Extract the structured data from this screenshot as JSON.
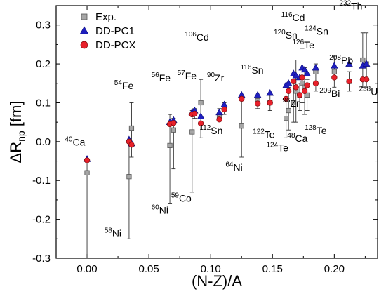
{
  "chart_data": {
    "type": "scatter",
    "xlabel": "(N-Z)/A",
    "ylabel_main": "ΔR",
    "ylabel_sub": "np",
    "ylabel_unit": " [fm]",
    "xlim": [
      -0.025,
      0.235
    ],
    "ylim": [
      -0.3,
      0.35
    ],
    "xticks": [
      0.0,
      0.05,
      0.1,
      0.15,
      0.2
    ],
    "xtick_labels": [
      "0.00",
      "0.05",
      "0.10",
      "0.15",
      "0.20"
    ],
    "yticks": [
      -0.3,
      -0.2,
      -0.1,
      0.0,
      0.1,
      0.2,
      0.3
    ],
    "ytick_labels": [
      "-0.3",
      "-0.2",
      "-0.1",
      "0.0",
      "0.1",
      "0.2",
      "0.3"
    ],
    "grid": false,
    "legend_position": "top-left",
    "series": [
      {
        "name": "Exp.",
        "marker": "square",
        "color": "#a6a6a6"
      },
      {
        "name": "DD-PC1",
        "marker": "triangle",
        "color": "#1f1fbf"
      },
      {
        "name": "DD-PCX",
        "marker": "circle",
        "color": "#e8202a"
      }
    ],
    "experiment": [
      {
        "x": 0.0,
        "y": -0.08,
        "lo": -0.31,
        "hi": -0.05
      },
      {
        "x": 0.034,
        "y": -0.09,
        "lo": -0.25,
        "hi": 0.0
      },
      {
        "x": 0.036,
        "y": 0.035,
        "lo": -0.04,
        "hi": 0.1
      },
      {
        "x": 0.067,
        "y": -0.01,
        "lo": -0.16,
        "hi": 0.07
      },
      {
        "x": 0.07,
        "y": 0.03,
        "lo": -0.07,
        "hi": 0.06
      },
      {
        "x": 0.085,
        "y": 0.025,
        "lo": -0.13,
        "hi": 0.08
      },
      {
        "x": 0.087,
        "y": 0.075,
        "lo": 0.06,
        "hi": 0.085
      },
      {
        "x": 0.092,
        "y": 0.1,
        "lo": 0.01,
        "hi": 0.16
      },
      {
        "x": 0.107,
        "y": 0.065,
        "lo": 0.055,
        "hi": 0.085
      },
      {
        "x": 0.111,
        "y": 0.085,
        "lo": 0.07,
        "hi": 0.1
      },
      {
        "x": 0.125,
        "y": 0.04,
        "lo": -0.04,
        "hi": 0.12
      },
      {
        "x": 0.138,
        "y": 0.105,
        "lo": 0.085,
        "hi": 0.125
      },
      {
        "x": 0.148,
        "y": 0.1,
        "lo": 0.08,
        "hi": 0.12
      },
      {
        "x": 0.161,
        "y": 0.06,
        "lo": 0.01,
        "hi": 0.11
      },
      {
        "x": 0.163,
        "y": 0.08,
        "lo": 0.03,
        "hi": 0.14
      },
      {
        "x": 0.167,
        "y": 0.1,
        "lo": 0.05,
        "hi": 0.15
      },
      {
        "x": 0.169,
        "y": 0.13,
        "lo": 0.05,
        "hi": 0.21
      },
      {
        "x": 0.172,
        "y": 0.12,
        "lo": 0.08,
        "hi": 0.15
      },
      {
        "x": 0.174,
        "y": 0.15,
        "lo": 0.1,
        "hi": 0.24
      },
      {
        "x": 0.176,
        "y": 0.14,
        "lo": 0.07,
        "hi": 0.19
      },
      {
        "x": 0.178,
        "y": 0.12,
        "lo": 0.08,
        "hi": 0.16
      },
      {
        "x": 0.185,
        "y": 0.18,
        "lo": 0.13,
        "hi": 0.2
      },
      {
        "x": 0.2,
        "y": 0.18,
        "lo": 0.14,
        "hi": 0.22
      },
      {
        "x": 0.212,
        "y": 0.155,
        "lo": 0.13,
        "hi": 0.18
      },
      {
        "x": 0.223,
        "y": 0.21,
        "lo": 0.14,
        "hi": 0.28
      },
      {
        "x": 0.226,
        "y": 0.2,
        "lo": 0.14,
        "hi": 0.28
      }
    ],
    "dd_pc1": [
      {
        "x": 0.0,
        "y": -0.045
      },
      {
        "x": 0.034,
        "y": 0.005
      },
      {
        "x": 0.036,
        "y": -0.005
      },
      {
        "x": 0.067,
        "y": 0.05
      },
      {
        "x": 0.07,
        "y": 0.055
      },
      {
        "x": 0.085,
        "y": 0.075
      },
      {
        "x": 0.087,
        "y": 0.08
      },
      {
        "x": 0.092,
        "y": 0.065
      },
      {
        "x": 0.107,
        "y": 0.075
      },
      {
        "x": 0.111,
        "y": 0.095
      },
      {
        "x": 0.125,
        "y": 0.12
      },
      {
        "x": 0.138,
        "y": 0.12
      },
      {
        "x": 0.148,
        "y": 0.125
      },
      {
        "x": 0.161,
        "y": 0.145
      },
      {
        "x": 0.163,
        "y": 0.15
      },
      {
        "x": 0.167,
        "y": 0.175
      },
      {
        "x": 0.169,
        "y": 0.17
      },
      {
        "x": 0.172,
        "y": 0.165
      },
      {
        "x": 0.174,
        "y": 0.19
      },
      {
        "x": 0.176,
        "y": 0.185
      },
      {
        "x": 0.178,
        "y": 0.175
      },
      {
        "x": 0.185,
        "y": 0.19
      },
      {
        "x": 0.2,
        "y": 0.195
      },
      {
        "x": 0.212,
        "y": 0.2
      },
      {
        "x": 0.223,
        "y": 0.195
      },
      {
        "x": 0.226,
        "y": 0.2
      }
    ],
    "dd_pcx": [
      {
        "x": 0.0,
        "y": -0.048
      },
      {
        "x": 0.034,
        "y": 0.0
      },
      {
        "x": 0.036,
        "y": -0.008
      },
      {
        "x": 0.067,
        "y": 0.045
      },
      {
        "x": 0.07,
        "y": 0.048
      },
      {
        "x": 0.085,
        "y": 0.07
      },
      {
        "x": 0.087,
        "y": 0.072
      },
      {
        "x": 0.092,
        "y": 0.047
      },
      {
        "x": 0.107,
        "y": 0.057
      },
      {
        "x": 0.111,
        "y": 0.083
      },
      {
        "x": 0.125,
        "y": 0.11
      },
      {
        "x": 0.138,
        "y": 0.098
      },
      {
        "x": 0.148,
        "y": 0.1
      },
      {
        "x": 0.161,
        "y": 0.11
      },
      {
        "x": 0.163,
        "y": 0.13
      },
      {
        "x": 0.167,
        "y": 0.155
      },
      {
        "x": 0.169,
        "y": 0.14
      },
      {
        "x": 0.172,
        "y": 0.12
      },
      {
        "x": 0.174,
        "y": 0.165
      },
      {
        "x": 0.176,
        "y": 0.13
      },
      {
        "x": 0.178,
        "y": 0.145
      },
      {
        "x": 0.185,
        "y": 0.15
      },
      {
        "x": 0.2,
        "y": 0.165
      },
      {
        "x": 0.212,
        "y": 0.155
      },
      {
        "x": 0.223,
        "y": 0.16
      },
      {
        "x": 0.226,
        "y": 0.16
      }
    ],
    "isotope_labels": [
      {
        "mass": "40",
        "element": "Ca",
        "x": -0.018,
        "y": -0.01
      },
      {
        "mass": "58",
        "element": "Ni",
        "x": 0.014,
        "y": -0.245
      },
      {
        "mass": "54",
        "element": "Fe",
        "x": 0.022,
        "y": 0.135
      },
      {
        "mass": "56",
        "element": "Fe",
        "x": 0.052,
        "y": 0.155
      },
      {
        "mass": "57",
        "element": "Fe",
        "x": 0.073,
        "y": 0.16
      },
      {
        "mass": "60",
        "element": "Ni",
        "x": 0.052,
        "y": -0.185
      },
      {
        "mass": "59",
        "element": "Co",
        "x": 0.068,
        "y": -0.155
      },
      {
        "mass": "106",
        "element": "Cd",
        "x": 0.079,
        "y": 0.26
      },
      {
        "mass": "90",
        "element": "Zr",
        "x": 0.097,
        "y": 0.155
      },
      {
        "mass": "112",
        "element": "Sn",
        "x": 0.091,
        "y": 0.02
      },
      {
        "mass": "116",
        "element": "Sn",
        "x": 0.124,
        "y": 0.175
      },
      {
        "mass": "64",
        "element": "Ni",
        "x": 0.112,
        "y": -0.075
      },
      {
        "mass": "122",
        "element": "Te",
        "x": 0.134,
        "y": 0.01
      },
      {
        "mass": "124",
        "element": "Te",
        "x": 0.145,
        "y": -0.025
      },
      {
        "mass": "116",
        "element": "Cd",
        "x": 0.157,
        "y": 0.31
      },
      {
        "mass": "120",
        "element": "Sn",
        "x": 0.151,
        "y": 0.265
      },
      {
        "mass": "124",
        "element": "Sn",
        "x": 0.176,
        "y": 0.275
      },
      {
        "mass": "126",
        "element": "Te",
        "x": 0.166,
        "y": 0.24
      },
      {
        "mass": "96",
        "element": "Zr",
        "x": 0.158,
        "y": 0.09
      },
      {
        "mass": "48",
        "element": "Ca",
        "x": 0.162,
        "y": 0.0
      },
      {
        "mass": "128",
        "element": "Te",
        "x": 0.176,
        "y": 0.02
      },
      {
        "mass": "208",
        "element": "Pb",
        "x": 0.196,
        "y": 0.2
      },
      {
        "mass": "209",
        "element": "Bi",
        "x": 0.188,
        "y": 0.115
      },
      {
        "mass": "232",
        "element": "Th",
        "x": 0.204,
        "y": 0.34
      },
      {
        "mass": "238",
        "element": "U",
        "x": 0.22,
        "y": 0.12
      }
    ]
  }
}
